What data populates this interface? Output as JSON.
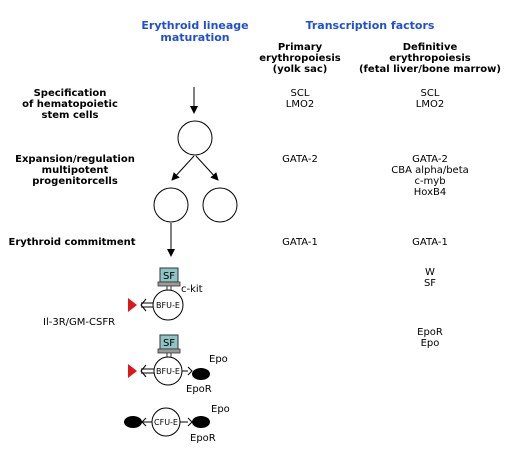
{
  "headers": {
    "lineage": [
      "Erythroid lineage",
      "maturation"
    ],
    "tf": "Transcription factors",
    "primary": [
      "Primary",
      "erythropoiesis",
      "(yolk sac)"
    ],
    "definitive": [
      "Definitive",
      "erythropoiesis",
      "(fetal liver/bone marrow)"
    ]
  },
  "stages": {
    "specification": [
      "Specification",
      "of hematopoietic",
      "stem cells"
    ],
    "expansion": [
      "Expansion/regulation",
      "multipotent",
      "progenitorcells"
    ],
    "commitment": "Erythroid commitment"
  },
  "primary_tf": {
    "specification": [
      "SCL",
      "LMO2"
    ],
    "expansion": "GATA-2",
    "commitment": "GATA-1"
  },
  "definitive_tf": {
    "specification": [
      "SCL",
      "LMO2"
    ],
    "expansion": [
      "GATA-2",
      "CBA alpha/beta",
      "c-myb",
      "HoxB4"
    ],
    "commitment": "GATA-1",
    "sf_stage": [
      "W",
      "SF"
    ],
    "epo_stage": [
      "EpoR",
      "Epo"
    ]
  },
  "cells": {
    "bfu_label": "BFU-E",
    "cfu_label": "CFU-E",
    "sf_box": "SF",
    "ckit": "c-kit",
    "il3": "Il-3R/GM-CSFR",
    "epo": "Epo",
    "epor": "EpoR"
  },
  "colors": {
    "header_blue": "#1f4fd8",
    "sf_fill": "#8fc4c4",
    "red_triangle": "#e0161b",
    "ligand_black": "#000000"
  }
}
